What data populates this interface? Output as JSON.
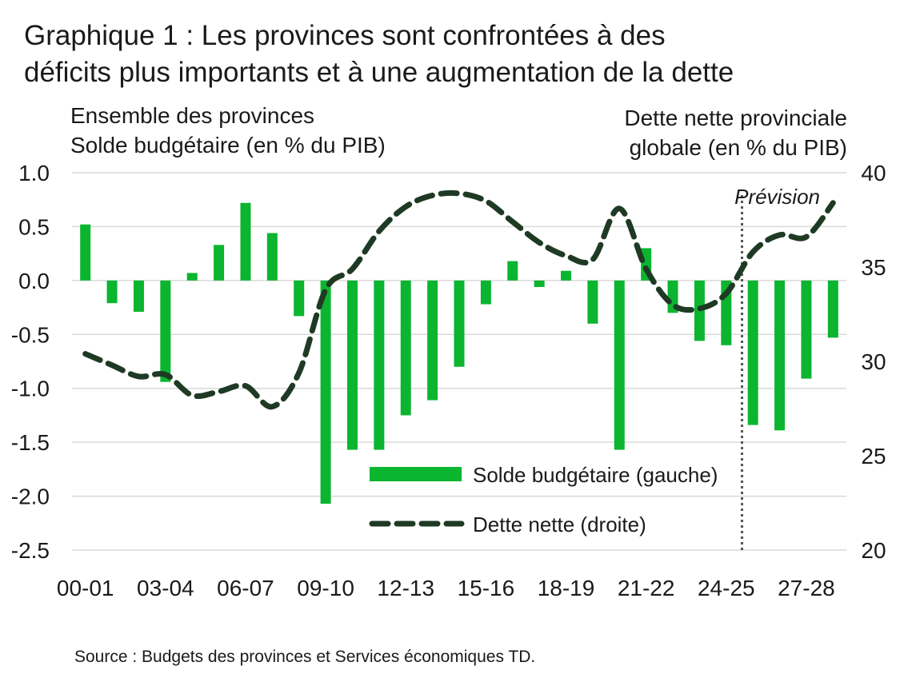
{
  "title": {
    "line1": "Graphique 1 : Les provinces sont confrontées à des",
    "line2": "déficits plus importants et à une augmentation de la dette"
  },
  "left_axis_title": {
    "line1": "Ensemble des provinces",
    "line2": "Solde budgétaire (en % du PIB)"
  },
  "right_axis_title": {
    "line1": "Dette nette provinciale",
    "line2": "globale (en % du PIB)"
  },
  "source": "Source : Budgets des provinces et Services économiques TD.",
  "colors": {
    "bars": "#0bb52f",
    "line": "#1f3a24",
    "grid": "#d9d9d9",
    "forecast_line": "#555555"
  },
  "chart_data": {
    "type": "bar+line",
    "categories": [
      "00-01",
      "01-02",
      "02-03",
      "03-04",
      "04-05",
      "05-06",
      "06-07",
      "07-08",
      "08-09",
      "09-10",
      "10-11",
      "11-12",
      "12-13",
      "13-14",
      "14-15",
      "15-16",
      "16-17",
      "17-18",
      "18-19",
      "19-20",
      "20-21",
      "21-22",
      "22-23",
      "23-24",
      "24-25",
      "25-26",
      "26-27",
      "27-28",
      "28-29"
    ],
    "x_tick_labels": [
      "00-01",
      "03-04",
      "06-07",
      "09-10",
      "12-13",
      "15-16",
      "18-19",
      "21-22",
      "24-25",
      "27-28"
    ],
    "series": [
      {
        "name": "Solde budgétaire (gauche)",
        "type": "bar",
        "axis": "left",
        "values": [
          0.52,
          -0.21,
          -0.29,
          -0.94,
          0.07,
          0.33,
          0.72,
          0.44,
          -0.33,
          -2.07,
          -1.57,
          -1.57,
          -1.25,
          -1.11,
          -0.8,
          -0.22,
          0.18,
          -0.06,
          0.09,
          -0.4,
          -1.57,
          0.3,
          -0.3,
          -0.56,
          -0.6,
          -1.34,
          -1.39,
          -0.91,
          -0.53
        ]
      },
      {
        "name": "Dette nette (droite)",
        "type": "line",
        "style": "dashed",
        "axis": "right",
        "values": [
          30.4,
          29.8,
          29.2,
          29.3,
          28.2,
          28.4,
          28.7,
          27.6,
          29.4,
          33.8,
          34.9,
          36.9,
          38.2,
          38.8,
          38.9,
          38.5,
          37.4,
          36.3,
          35.6,
          35.4,
          38.1,
          34.9,
          33.0,
          32.8,
          33.6,
          35.8,
          36.7,
          36.6,
          38.4
        ]
      }
    ],
    "left_axis": {
      "min": -2.5,
      "max": 1.0,
      "ticks": [
        "1.0",
        "0.5",
        "0.0",
        "-0.5",
        "-1.0",
        "-1.5",
        "-2.0",
        "-2.5"
      ]
    },
    "right_axis": {
      "min": 20,
      "max": 40,
      "ticks": [
        "40",
        "35",
        "30",
        "25",
        "20"
      ]
    },
    "forecast_label": "Prévision",
    "forecast_start_category": "25-26",
    "legend_placement": "bottom-center inside plot",
    "grid": "horizontal"
  }
}
